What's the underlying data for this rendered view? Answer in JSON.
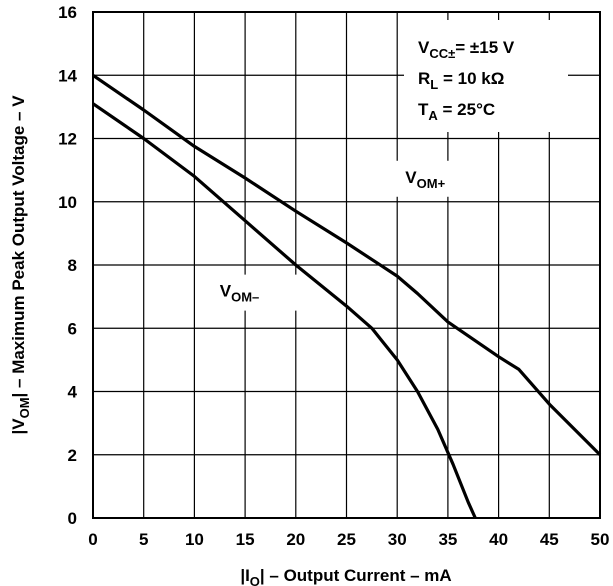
{
  "chart_data": {
    "type": "line",
    "xlabel": {
      "pre": "|I",
      "sub": "O",
      "post": "| – Output Current – mA"
    },
    "ylabel": {
      "pre": "|V",
      "sub": "OM",
      "post": "| – Maximum Peak Output Voltage – V"
    },
    "xlim": [
      0,
      50
    ],
    "ylim": [
      0,
      16
    ],
    "xticks": [
      0,
      5,
      10,
      15,
      20,
      25,
      30,
      35,
      40,
      45,
      50
    ],
    "yticks": [
      0,
      2,
      4,
      6,
      8,
      10,
      12,
      14,
      16
    ],
    "grid": true,
    "series": [
      {
        "name": "VOM+",
        "x": [
          0,
          5,
          10,
          15,
          20,
          25,
          30,
          32,
          35,
          40,
          42,
          45,
          50
        ],
        "y": [
          14.0,
          12.9,
          11.75,
          10.75,
          9.7,
          8.7,
          7.65,
          7.1,
          6.2,
          5.1,
          4.7,
          3.6,
          2.0
        ]
      },
      {
        "name": "VOM−",
        "x": [
          0,
          5,
          10,
          15,
          20,
          25,
          27.5,
          30,
          32,
          34,
          35.5,
          37,
          37.7
        ],
        "y": [
          13.1,
          12.0,
          10.8,
          9.4,
          8.0,
          6.7,
          6.0,
          5.0,
          4.0,
          2.8,
          1.7,
          0.5,
          0
        ]
      }
    ],
    "series_labels": [
      {
        "pre": "V",
        "sub": "OM+",
        "x": 30.8,
        "y": 10.6
      },
      {
        "pre": "V",
        "sub": "OM–",
        "x": 12.5,
        "y": 7.0
      }
    ],
    "conditions": {
      "line1": {
        "pre": "V",
        "sub": "CC±",
        "post": "= ±15 V"
      },
      "line2": {
        "pre": "R",
        "sub": "L",
        "post": " = 10 kΩ"
      },
      "line3": {
        "pre": "T",
        "sub": "A",
        "post": " = 25°C"
      }
    }
  }
}
